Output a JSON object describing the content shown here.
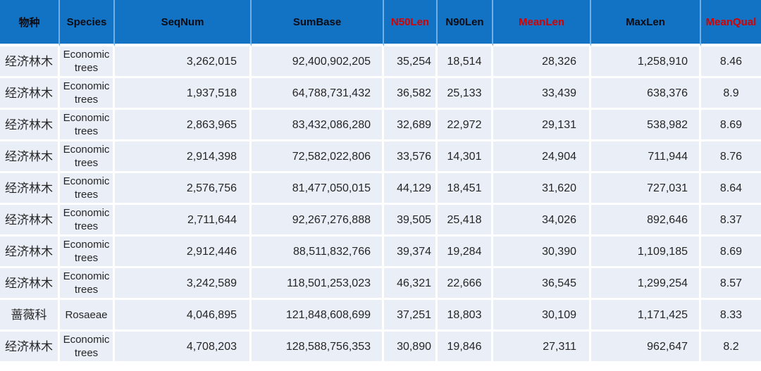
{
  "colors": {
    "header_bg": "#1273C4",
    "header_text": "#0b0b14",
    "header_red_text": "#D40000",
    "row_bg": "#E9EEF7",
    "body_text": "#262626",
    "grid_gap": "#FFFFFF",
    "header_separator": "#6FB0E8"
  },
  "table": {
    "columns": [
      {
        "key": "species_cn",
        "label": "物种",
        "red": false
      },
      {
        "key": "species_en",
        "label": "Species",
        "red": false
      },
      {
        "key": "seqnum",
        "label": "SeqNum",
        "red": false
      },
      {
        "key": "sumbase",
        "label": "SumBase",
        "red": false
      },
      {
        "key": "n50len",
        "label": "N50Len",
        "red": true
      },
      {
        "key": "n90len",
        "label": "N90Len",
        "red": false
      },
      {
        "key": "meanlen",
        "label": "MeanLen",
        "red": true
      },
      {
        "key": "maxlen",
        "label": "MaxLen",
        "red": false
      },
      {
        "key": "meanqual",
        "label": "MeanQual",
        "red": true
      }
    ],
    "rows": [
      [
        "经济林木",
        "Economic trees",
        "3,262,015",
        "92,400,902,205",
        "35,254",
        "18,514",
        "28,326",
        "1,258,910",
        "8.46"
      ],
      [
        "经济林木",
        "Economic trees",
        "1,937,518",
        "64,788,731,432",
        "36,582",
        "25,133",
        "33,439",
        "638,376",
        "8.9"
      ],
      [
        "经济林木",
        "Economic trees",
        "2,863,965",
        "83,432,086,280",
        "32,689",
        "22,972",
        "29,131",
        "538,982",
        "8.69"
      ],
      [
        "经济林木",
        "Economic trees",
        "2,914,398",
        "72,582,022,806",
        "33,576",
        "14,301",
        "24,904",
        "711,944",
        "8.76"
      ],
      [
        "经济林木",
        "Economic trees",
        "2,576,756",
        "81,477,050,015",
        "44,129",
        "18,451",
        "31,620",
        "727,031",
        "8.64"
      ],
      [
        "经济林木",
        "Economic trees",
        "2,711,644",
        "92,267,276,888",
        "39,505",
        "25,418",
        "34,026",
        "892,646",
        "8.37"
      ],
      [
        "经济林木",
        "Economic trees",
        "2,912,446",
        "88,511,832,766",
        "39,374",
        "19,284",
        "30,390",
        "1,109,185",
        "8.69"
      ],
      [
        "经济林木",
        "Economic trees",
        "3,242,589",
        "118,501,253,023",
        "46,321",
        "22,666",
        "36,545",
        "1,299,254",
        "8.57"
      ],
      [
        "蔷薇科",
        "Rosaeae",
        "4,046,895",
        "121,848,608,699",
        "37,251",
        "18,803",
        "30,109",
        "1,171,425",
        "8.33"
      ],
      [
        "经济林木",
        "Economic trees",
        "4,708,203",
        "128,588,756,353",
        "30,890",
        "19,846",
        "27,311",
        "962,647",
        "8.2"
      ]
    ]
  }
}
